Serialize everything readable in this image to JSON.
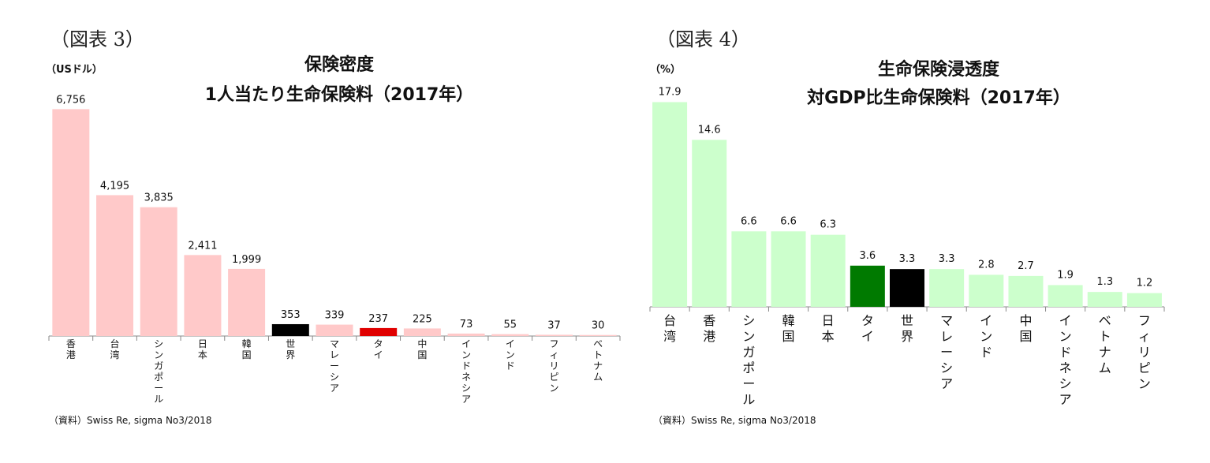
{
  "chart_data": [
    {
      "type": "bar",
      "figure_label": "（図表 3）",
      "unit_label": "（USドル）",
      "title": [
        "保険密度",
        "1人当たり生命保険料（2017年）"
      ],
      "source": "（資料）Swiss Re, sigma No3/2018",
      "categories": [
        "香港",
        "台湾",
        "シンガポール",
        "日本",
        "韓国",
        "世界",
        "マレーシア",
        "タイ",
        "中国",
        "インドネシア",
        "インド",
        "フィリピン",
        "ベトナム"
      ],
      "value_labels": [
        "6,756",
        "4,195",
        "3,835",
        "2,411",
        "1,999",
        "353",
        "339",
        "237",
        "225",
        "73",
        "55",
        "37",
        "30"
      ],
      "values": [
        6756,
        4195,
        3835,
        2411,
        1999,
        353,
        339,
        237,
        225,
        73,
        55,
        37,
        30
      ],
      "colors": [
        "#ffc9c9",
        "#ffc9c9",
        "#ffc9c9",
        "#ffc9c9",
        "#ffc9c9",
        "#000000",
        "#ffc9c9",
        "#e00000",
        "#ffc9c9",
        "#ffc9c9",
        "#ffc9c9",
        "#ffc9c9",
        "#ffc9c9"
      ],
      "ylim": [
        0,
        7000
      ],
      "grid": false
    },
    {
      "type": "bar",
      "figure_label": "（図表 4）",
      "unit_label": "（%）",
      "title": [
        "生命保険浸透度",
        "対GDP比生命保険料（2017年）"
      ],
      "source": "（資料）Swiss Re, sigma No3/2018",
      "categories": [
        "台湾",
        "香港",
        "シンガポール",
        "韓国",
        "日本",
        "タイ",
        "世界",
        "マレーシア",
        "インド",
        "中国",
        "インドネシア",
        "ベトナム",
        "フィリピン"
      ],
      "value_labels": [
        "17.9",
        "14.6",
        "6.6",
        "6.6",
        "6.3",
        "3.6",
        "3.3",
        "3.3",
        "2.8",
        "2.7",
        "1.9",
        "1.3",
        "1.2"
      ],
      "values": [
        17.9,
        14.6,
        6.6,
        6.6,
        6.3,
        3.6,
        3.3,
        3.3,
        2.8,
        2.7,
        1.9,
        1.3,
        1.2
      ],
      "colors": [
        "#ccffcc",
        "#ccffcc",
        "#ccffcc",
        "#ccffcc",
        "#ccffcc",
        "#007a00",
        "#000000",
        "#ccffcc",
        "#ccffcc",
        "#ccffcc",
        "#ccffcc",
        "#ccffcc",
        "#ccffcc"
      ],
      "ylim": [
        0,
        18
      ],
      "grid": false
    }
  ]
}
